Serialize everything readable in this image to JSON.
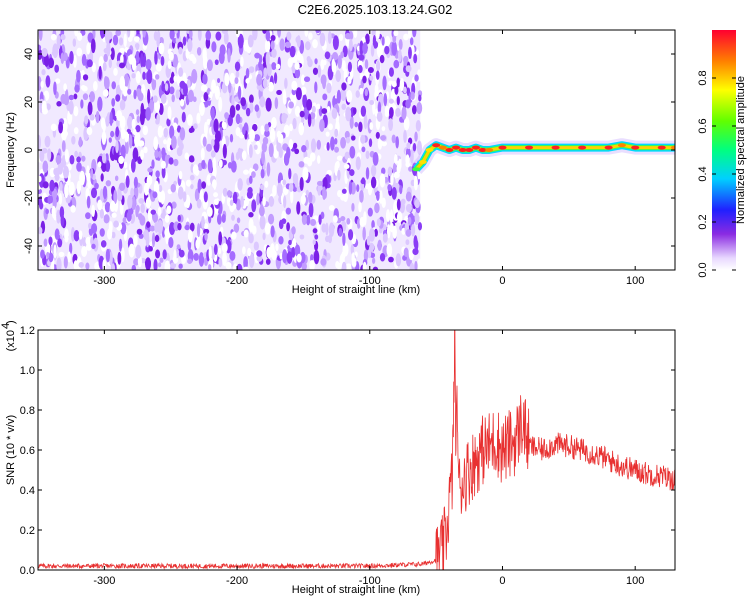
{
  "title": "C2E6.2025.103.13.24.G02",
  "chart_data": [
    {
      "type": "heatmap",
      "xlabel": "Height of straight line (km)",
      "ylabel": "Frequency (Hz)",
      "xlim": [
        -350,
        130
      ],
      "ylim": [
        -50,
        50
      ],
      "x_ticks": [
        -300,
        -200,
        -100,
        0,
        100
      ],
      "y_ticks": [
        -40,
        -20,
        0,
        20,
        40
      ],
      "colorbar": {
        "label": "Normalized spectral amplitude",
        "ticks": [
          "0.0",
          "0.2",
          "0.4",
          "0.6",
          "0.8"
        ],
        "range": [
          0,
          1
        ]
      },
      "noise_region_x": [
        -350,
        -62
      ],
      "signal_track": {
        "x": [
          -65,
          -60,
          -55,
          -50,
          -45,
          -40,
          -35,
          -30,
          -25,
          -20,
          -15,
          -10,
          0,
          20,
          40,
          60,
          80,
          90,
          100,
          120,
          130
        ],
        "frequency": [
          -8,
          -5,
          0,
          2,
          1,
          0,
          1,
          0,
          0,
          1,
          0,
          0,
          1,
          1,
          1,
          1,
          1,
          2,
          1,
          1,
          1
        ],
        "peak_amplitude": [
          0.45,
          0.6,
          0.7,
          0.9,
          0.85,
          0.95,
          0.9,
          1.0,
          0.9,
          0.95,
          0.9,
          0.85,
          0.95,
          1.0,
          1.0,
          1.0,
          0.95,
          0.85,
          0.9,
          0.9,
          0.85
        ]
      }
    },
    {
      "type": "line",
      "xlabel": "Height of straight line (km)",
      "ylabel": "SNR (10 * v/v)",
      "y_multiplier_label": "(x10",
      "y_multiplier_exp": "4",
      "xlim": [
        -350,
        130
      ],
      "ylim": [
        0,
        1.2
      ],
      "x_ticks": [
        -300,
        -200,
        -100,
        0,
        100
      ],
      "y_ticks": [
        0.0,
        0.2,
        0.4,
        0.6,
        0.8,
        1.0,
        1.2
      ],
      "color": "#e83030",
      "series": [
        {
          "x": [
            -350,
            -300,
            -250,
            -200,
            -150,
            -100,
            -60,
            -50,
            -45,
            -42,
            -40,
            -38,
            -37,
            -36,
            -35,
            -34,
            -33,
            -30,
            -25,
            -20,
            -15,
            -10,
            -5,
            0,
            10,
            15,
            20,
            30,
            40,
            50,
            60,
            70,
            80,
            90,
            100,
            110,
            120,
            130
          ],
          "values": [
            0.02,
            0.02,
            0.02,
            0.02,
            0.02,
            0.02,
            0.03,
            0.05,
            0.1,
            0.2,
            0.35,
            0.45,
            0.7,
            1.2,
            0.6,
            0.85,
            0.4,
            0.45,
            0.5,
            0.55,
            0.6,
            0.62,
            0.65,
            0.6,
            0.65,
            0.75,
            0.62,
            0.6,
            0.63,
            0.62,
            0.6,
            0.58,
            0.55,
            0.52,
            0.5,
            0.48,
            0.47,
            0.45
          ]
        }
      ]
    }
  ]
}
